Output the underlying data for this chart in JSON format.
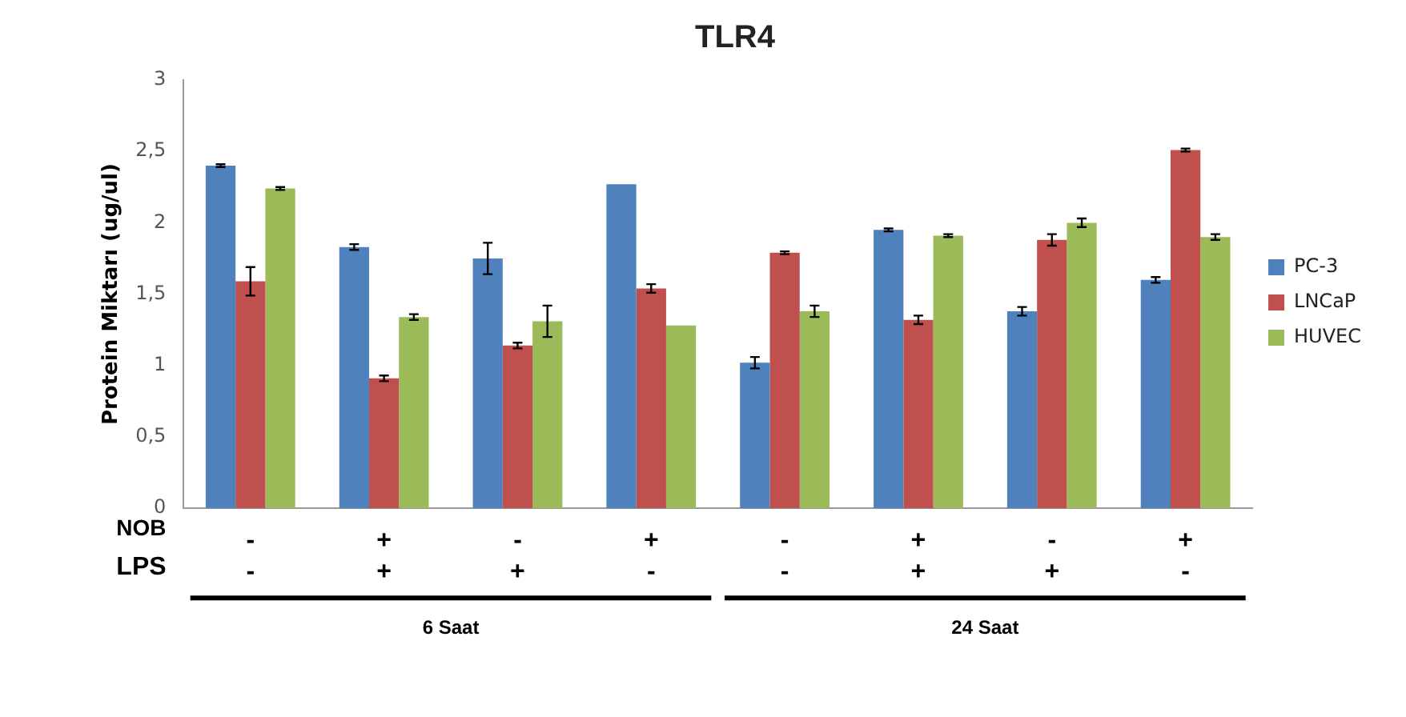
{
  "chart_data": {
    "type": "bar",
    "title": "TLR4",
    "ylabel": "Protein Miktarı (ug/ul)",
    "categories": [
      "-\n-",
      "+\n+",
      "-\n+",
      "+\n-",
      "-\n-",
      "+\n+",
      "-\n+",
      "+\n-"
    ],
    "series": [
      {
        "name": "PC-3",
        "color": "#4f81bd",
        "values": [
          2.4,
          1.83,
          1.75,
          2.27,
          1.02,
          1.95,
          1.38,
          1.6
        ],
        "errors": [
          0.01,
          0.02,
          0.11,
          null,
          0.04,
          0.01,
          0.03,
          0.02
        ]
      },
      {
        "name": "LNCaP",
        "color": "#c0504d",
        "values": [
          1.59,
          0.91,
          1.14,
          1.54,
          1.79,
          1.32,
          1.88,
          2.51
        ],
        "errors": [
          0.1,
          0.02,
          0.02,
          0.03,
          0.01,
          0.03,
          0.04,
          0.01
        ]
      },
      {
        "name": "HUVEC",
        "color": "#9bbb59",
        "values": [
          2.24,
          1.34,
          1.31,
          1.28,
          1.38,
          1.91,
          2.0,
          1.9
        ],
        "errors": [
          0.01,
          0.02,
          0.11,
          null,
          0.04,
          0.01,
          0.03,
          0.02
        ]
      }
    ],
    "ylim": [
      0,
      3
    ],
    "yticks": [
      {
        "value": 0,
        "label": "0"
      },
      {
        "value": 0.5,
        "label": "0,5"
      },
      {
        "value": 1,
        "label": "1"
      },
      {
        "value": 1.5,
        "label": "1,5"
      },
      {
        "value": 2,
        "label": "2"
      },
      {
        "value": 2.5,
        "label": "2,5"
      },
      {
        "value": 3,
        "label": "3"
      }
    ],
    "grid": false,
    "legend": "right",
    "annotations": [
      "NOB",
      "LPS",
      "6 Saat",
      "24 Saat"
    ]
  }
}
